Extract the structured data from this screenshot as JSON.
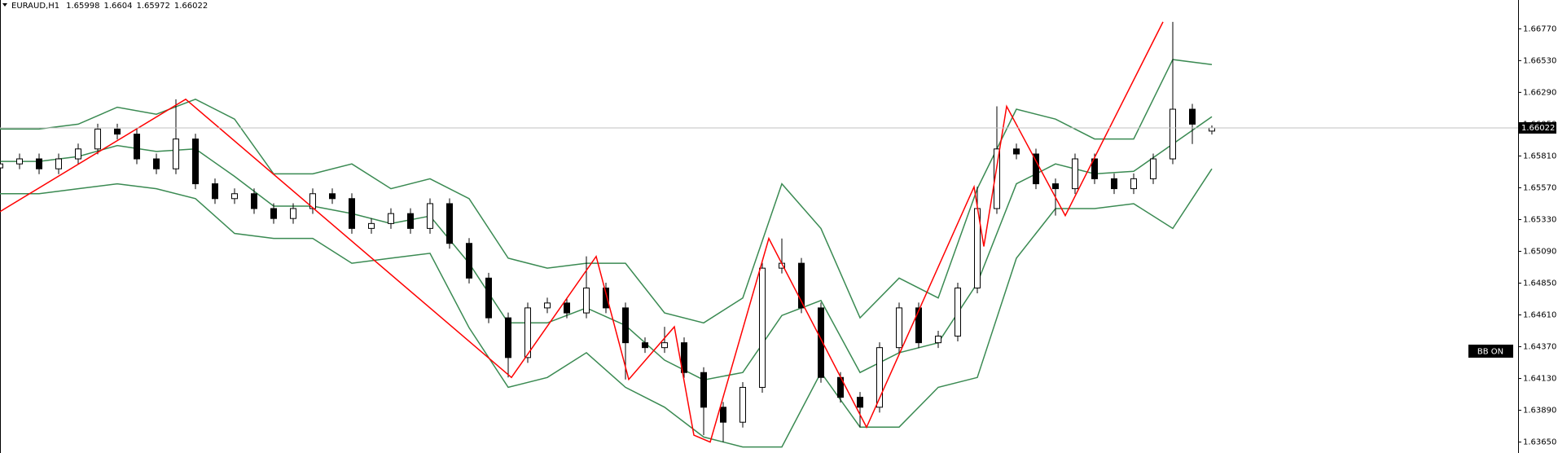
{
  "chart_data": {
    "type": "candlestick",
    "title": "EURAUD,H1",
    "annotation": "BB ON",
    "ylim": [
      1.635675,
      1.669875
    ],
    "xlim": [
      0,
      466
    ],
    "yticks": [
      {
        "value": 1.6677,
        "label": "1.66770"
      },
      {
        "value": 1.6653,
        "label": "1.66530"
      },
      {
        "value": 1.6629,
        "label": "1.66290"
      },
      {
        "value": 1.6605,
        "label": "1.66050"
      },
      {
        "value": 1.6581,
        "label": "1.65810"
      },
      {
        "value": 1.6557,
        "label": "1.65570"
      },
      {
        "value": 1.6533,
        "label": "1.65330"
      },
      {
        "value": 1.6509,
        "label": "1.65090"
      },
      {
        "value": 1.6485,
        "label": "1.64850"
      },
      {
        "value": 1.6461,
        "label": "1.64610"
      },
      {
        "value": 1.6437,
        "label": "1.64370"
      },
      {
        "value": 1.6413,
        "label": "1.64130"
      },
      {
        "value": 1.6389,
        "label": "1.63890"
      },
      {
        "value": 1.6365,
        "label": "1.63650"
      }
    ],
    "x": [
      0,
      6,
      12,
      18,
      24,
      30,
      36,
      42,
      48,
      54,
      60,
      66,
      72,
      78,
      84,
      90,
      96,
      102,
      108,
      114,
      120,
      126,
      132,
      138,
      144,
      150,
      156,
      162,
      168,
      174,
      180,
      186,
      192,
      198,
      204,
      210,
      216,
      222,
      228,
      234,
      240,
      246,
      252,
      258,
      264,
      270,
      276,
      282,
      288,
      294,
      300,
      306,
      312,
      318,
      324,
      330,
      336,
      342,
      348,
      354,
      360,
      366,
      372
    ],
    "ohlc": [
      [
        1.6572,
        1.6579,
        1.6568,
        1.6575
      ],
      [
        1.6575,
        1.65828,
        1.6571,
        1.65788
      ],
      [
        1.65788,
        1.65828,
        1.65673,
        1.65713
      ],
      [
        1.65713,
        1.65828,
        1.65673,
        1.65788
      ],
      [
        1.65788,
        1.65903,
        1.65748,
        1.65863
      ],
      [
        1.65863,
        1.66053,
        1.65823,
        1.66013
      ],
      [
        1.66013,
        1.66053,
        1.65935,
        1.65975
      ],
      [
        1.65975,
        1.66015,
        1.65748,
        1.65788
      ],
      [
        1.65788,
        1.65828,
        1.65673,
        1.65713
      ],
      [
        1.65713,
        1.66238,
        1.65673,
        1.65938
      ],
      [
        1.65938,
        1.65978,
        1.6556,
        1.656
      ],
      [
        1.656,
        1.6564,
        1.65448,
        1.65488
      ],
      [
        1.65488,
        1.65565,
        1.65448,
        1.65525
      ],
      [
        1.65525,
        1.65565,
        1.65373,
        1.65413
      ],
      [
        1.65413,
        1.65453,
        1.65298,
        1.65338
      ],
      [
        1.65338,
        1.65453,
        1.65298,
        1.65413
      ],
      [
        1.65413,
        1.65565,
        1.65373,
        1.65525
      ],
      [
        1.65525,
        1.65565,
        1.65448,
        1.65488
      ],
      [
        1.65488,
        1.65528,
        1.65223,
        1.65263
      ],
      [
        1.65263,
        1.6534,
        1.65223,
        1.653
      ],
      [
        1.653,
        1.65415,
        1.6526,
        1.65375
      ],
      [
        1.65375,
        1.65415,
        1.65223,
        1.65263
      ],
      [
        1.65263,
        1.6549,
        1.65223,
        1.6545
      ],
      [
        1.6545,
        1.6549,
        1.6511,
        1.6515
      ],
      [
        1.6515,
        1.6519,
        1.64848,
        1.64888
      ],
      [
        1.64888,
        1.64928,
        1.64548,
        1.64588
      ],
      [
        1.64588,
        1.64628,
        1.64138,
        1.64288
      ],
      [
        1.64288,
        1.64703,
        1.64248,
        1.64663
      ],
      [
        1.64663,
        1.6474,
        1.64623,
        1.647
      ],
      [
        1.647,
        1.6474,
        1.64585,
        1.64625
      ],
      [
        1.64625,
        1.65052,
        1.64585,
        1.64813
      ],
      [
        1.64813,
        1.64853,
        1.64623,
        1.64663
      ],
      [
        1.64663,
        1.64703,
        1.64123,
        1.644
      ],
      [
        1.644,
        1.6444,
        1.64323,
        1.64363
      ],
      [
        1.64363,
        1.6452,
        1.64323,
        1.644
      ],
      [
        1.644,
        1.6444,
        1.64135,
        1.64175
      ],
      [
        1.64175,
        1.64215,
        1.63702,
        1.63913
      ],
      [
        1.63913,
        1.63953,
        1.6365,
        1.638
      ],
      [
        1.638,
        1.64103,
        1.6376,
        1.64063
      ],
      [
        1.64063,
        1.65003,
        1.64023,
        1.64963
      ],
      [
        1.64963,
        1.65187,
        1.64923,
        1.65
      ],
      [
        1.65,
        1.6504,
        1.64623,
        1.64663
      ],
      [
        1.64663,
        1.64703,
        1.64098,
        1.64138
      ],
      [
        1.64138,
        1.64178,
        1.63948,
        1.63988
      ],
      [
        1.63988,
        1.64028,
        1.63762,
        1.63913
      ],
      [
        1.63913,
        1.64403,
        1.63873,
        1.64363
      ],
      [
        1.64363,
        1.64703,
        1.64323,
        1.64663
      ],
      [
        1.64663,
        1.64703,
        1.6436,
        1.644
      ],
      [
        1.644,
        1.6449,
        1.6436,
        1.6445
      ],
      [
        1.6445,
        1.64853,
        1.6441,
        1.64813
      ],
      [
        1.64813,
        1.65577,
        1.64773,
        1.65413
      ],
      [
        1.65413,
        1.66185,
        1.65373,
        1.65863
      ],
      [
        1.65863,
        1.65903,
        1.65785,
        1.65825
      ],
      [
        1.65825,
        1.65865,
        1.6556,
        1.656
      ],
      [
        1.656,
        1.6564,
        1.6536,
        1.65563
      ],
      [
        1.65563,
        1.65828,
        1.65523,
        1.65788
      ],
      [
        1.65788,
        1.65828,
        1.65598,
        1.65638
      ],
      [
        1.65638,
        1.65678,
        1.65523,
        1.65563
      ],
      [
        1.65563,
        1.65678,
        1.65523,
        1.65638
      ],
      [
        1.65638,
        1.65828,
        1.65598,
        1.65788
      ],
      [
        1.65788,
        1.66822,
        1.65748,
        1.66163
      ],
      [
        1.66163,
        1.66203,
        1.659,
        1.6605
      ],
      [
        1.65998,
        1.6604,
        1.65972,
        1.66022
      ]
    ],
    "bands": {
      "color": "#3a8a52",
      "x": [
        0,
        12,
        24,
        36,
        48,
        60,
        72,
        84,
        96,
        108,
        120,
        132,
        144,
        156,
        168,
        180,
        192,
        204,
        216,
        228,
        240,
        252,
        264,
        276,
        288,
        300,
        312,
        324,
        336,
        348,
        360,
        372
      ],
      "upper": [
        1.66013,
        1.66013,
        1.6605,
        1.66178,
        1.66125,
        1.66238,
        1.66088,
        1.65675,
        1.65675,
        1.6575,
        1.65563,
        1.65638,
        1.65488,
        1.65038,
        1.64963,
        1.65,
        1.65,
        1.64625,
        1.6455,
        1.64738,
        1.656,
        1.65263,
        1.64588,
        1.64888,
        1.64738,
        1.65563,
        1.66163,
        1.66088,
        1.65938,
        1.65938,
        1.66538,
        1.665
      ],
      "middle": [
        1.65769,
        1.65769,
        1.65806,
        1.65889,
        1.65844,
        1.65863,
        1.65656,
        1.65431,
        1.65431,
        1.65375,
        1.653,
        1.65356,
        1.65,
        1.6455,
        1.6455,
        1.64663,
        1.64531,
        1.64269,
        1.64119,
        1.64175,
        1.64606,
        1.64719,
        1.64175,
        1.64325,
        1.644,
        1.6485,
        1.656,
        1.6575,
        1.65675,
        1.65694,
        1.659,
        1.66106
      ],
      "lower": [
        1.65525,
        1.65525,
        1.65563,
        1.656,
        1.65563,
        1.65488,
        1.65225,
        1.65188,
        1.65188,
        1.65,
        1.65038,
        1.65075,
        1.64513,
        1.64063,
        1.64138,
        1.64325,
        1.64063,
        1.63913,
        1.63688,
        1.63613,
        1.63613,
        1.64175,
        1.63763,
        1.63763,
        1.64063,
        1.64138,
        1.65038,
        1.65413,
        1.65413,
        1.6545,
        1.65263,
        1.65713
      ]
    },
    "zigzag": {
      "color": "#ff0000",
      "x": [
        0,
        57,
        157,
        183,
        193,
        207,
        213,
        218,
        236,
        266,
        299,
        302,
        309,
        327,
        357
      ],
      "values": [
        1.6539,
        1.66238,
        1.64138,
        1.65052,
        1.64123,
        1.6452,
        1.63702,
        1.6365,
        1.65187,
        1.63762,
        1.65577,
        1.65127,
        1.66185,
        1.6536,
        1.66822
      ]
    }
  }
}
